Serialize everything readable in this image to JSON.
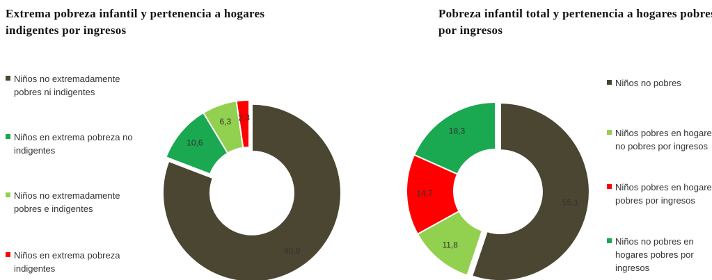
{
  "chart_data": [
    {
      "type": "donut",
      "title": "Extrema pobreza infantil y pertenencia a hogares indigentes por ingresos",
      "categories": [
        "Niños no extremadamente pobres ni indigentes",
        "Niños en extrema pobreza no indigentes",
        "Niños no extremadamente pobres e indigentes",
        "Niños en extrema pobreza indigentes"
      ],
      "values": [
        80.9,
        10.6,
        6.3,
        2.3
      ],
      "value_labels": [
        "80,9",
        "10,6",
        "6,3",
        "2,3"
      ],
      "colors": [
        "#4a4632",
        "#1aa851",
        "#92d050",
        "#ff0000"
      ]
    },
    {
      "type": "donut",
      "title": "Pobreza infantil total y pertenencia a hogares pobres por ingresos",
      "categories": [
        "Niños no pobres",
        "Niños pobres en hogares no pobres por ingresos",
        "Niños pobres en hogares pobres por ingresos",
        "Niños no pobres en hogares pobres por ingresos"
      ],
      "values": [
        55.1,
        11.8,
        14.7,
        18.3
      ],
      "value_labels": [
        "55,1",
        "11,8",
        "14,7",
        "18,3"
      ],
      "colors": [
        "#4a4632",
        "#92d050",
        "#ff0000",
        "#1aa851"
      ]
    }
  ]
}
